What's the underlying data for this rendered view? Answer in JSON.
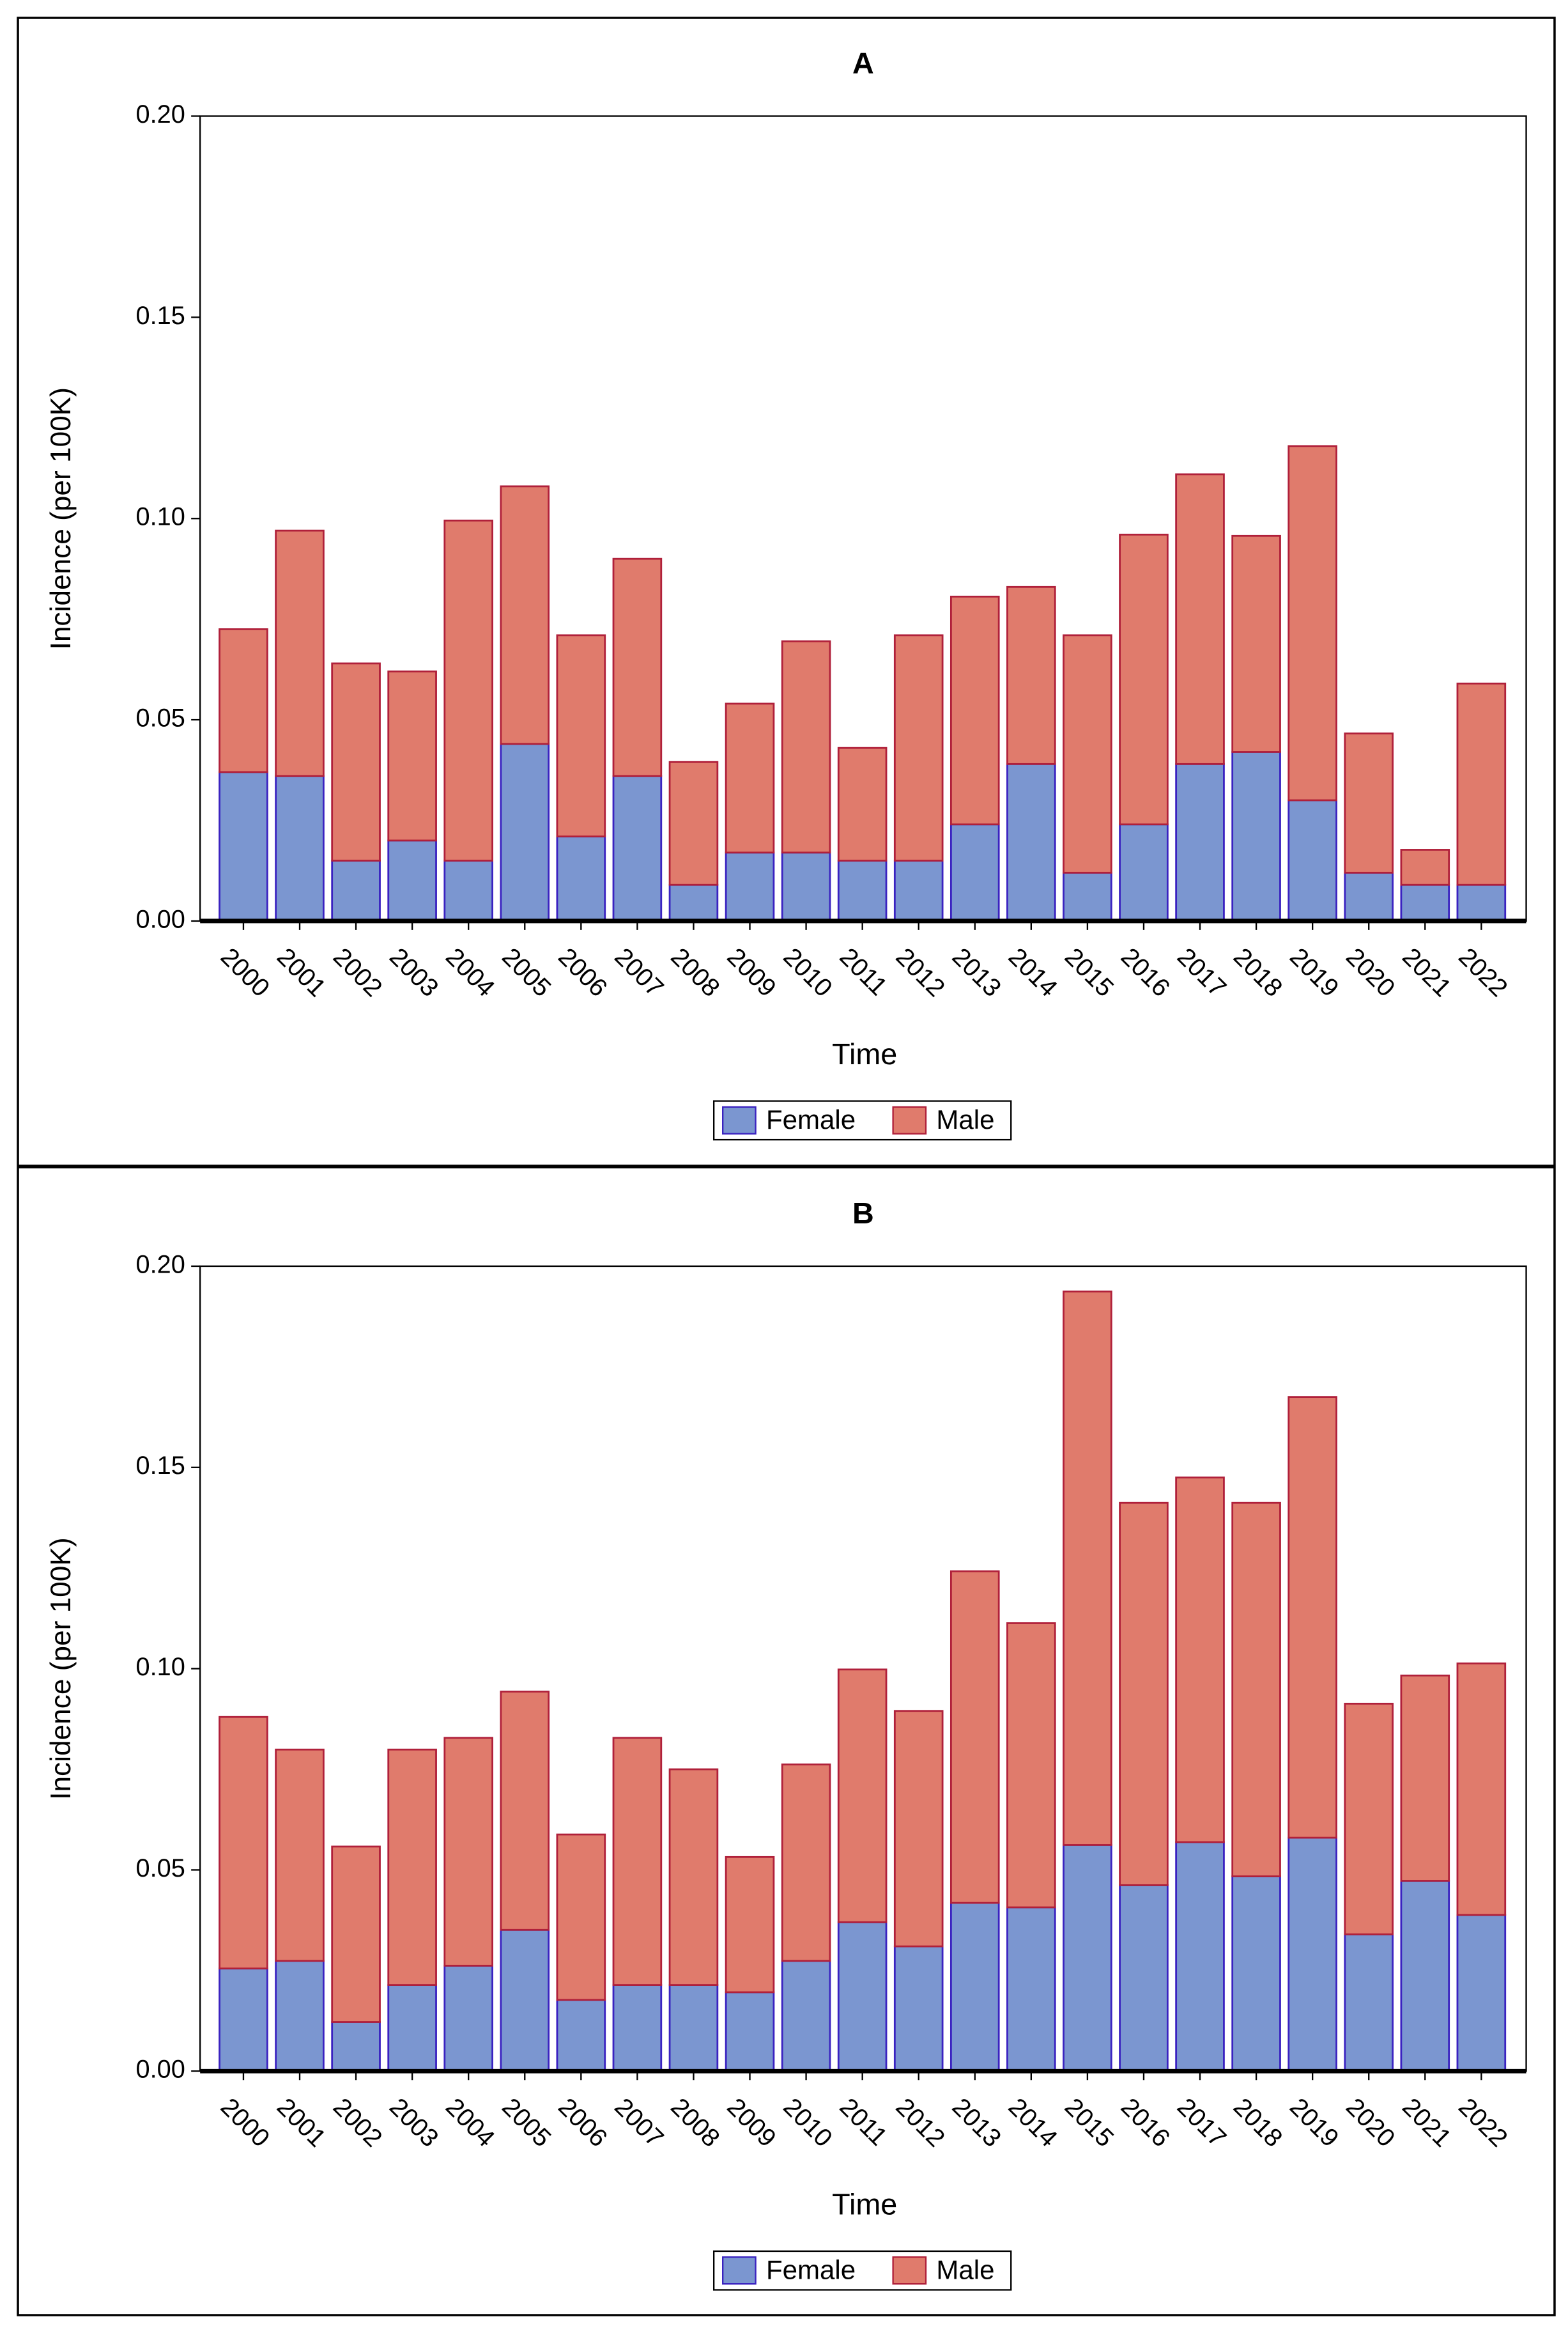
{
  "chart_data": [
    {
      "type": "stacked_bar",
      "title": "A",
      "x_label": "Time",
      "y_label": "Incidence (per 100K)",
      "categories": [
        "2000",
        "2001",
        "2002",
        "2003",
        "2004",
        "2005",
        "2006",
        "2007",
        "2008",
        "2009",
        "2010",
        "2011",
        "2012",
        "2013",
        "2014",
        "2015",
        "2016",
        "2017",
        "2018",
        "2019",
        "2020",
        "2021",
        "2022"
      ],
      "series": [
        {
          "name": "Female",
          "color": "#7b96d0",
          "edgecolor": "#3a22c0",
          "values": [
            0.037,
            0.036,
            0.015,
            0.02,
            0.015,
            0.044,
            0.021,
            0.036,
            0.009,
            0.017,
            0.017,
            0.015,
            0.015,
            0.024,
            0.039,
            0.012,
            0.024,
            0.039,
            0.042,
            0.03,
            0.012,
            0.009,
            0.009
          ]
        },
        {
          "name": "Male",
          "color": "#e07b6c",
          "edgecolor": "#b0203a",
          "values": [
            0.0355,
            0.061,
            0.049,
            0.042,
            0.0845,
            0.064,
            0.05,
            0.054,
            0.0305,
            0.037,
            0.0525,
            0.028,
            0.056,
            0.0566,
            0.044,
            0.059,
            0.072,
            0.072,
            0.0537,
            0.088,
            0.0346,
            0.0087,
            0.05
          ]
        }
      ],
      "ylim": [
        0,
        0.2
      ],
      "yticks": [
        {
          "value": 0,
          "label": "0.00"
        },
        {
          "value": 0.05,
          "label": "0.05"
        },
        {
          "value": 0.1,
          "label": "0.10"
        },
        0.15,
        {
          "value": 0.2,
          "label": "0.20"
        }
      ],
      "legend": "bottom"
    },
    {
      "type": "stacked_bar",
      "title": "B",
      "x_label": "Time",
      "y_label": "Incidence (per 100K)",
      "categories": [
        "2000",
        "2001",
        "2002",
        "2003",
        "2004",
        "2005",
        "2006",
        "2007",
        "2008",
        "2009",
        "2010",
        "2011",
        "2012",
        "2013",
        "2014",
        "2015",
        "2016",
        "2017",
        "2018",
        "2019",
        "2020",
        "2021",
        "2022"
      ],
      "series": [
        {
          "name": "Female",
          "color": "#7b96d0",
          "edgecolor": "#3a22c0",
          "values": [
            0.0255,
            0.0274,
            0.0122,
            0.0214,
            0.0262,
            0.0351,
            0.0177,
            0.0214,
            0.0214,
            0.0196,
            0.0274,
            0.037,
            0.031,
            0.0418,
            0.0407,
            0.0562,
            0.0462,
            0.0569,
            0.0484,
            0.058,
            0.034,
            0.0473,
            0.0388
          ]
        },
        {
          "name": "Male",
          "color": "#e07b6c",
          "edgecolor": "#b0203a",
          "values": [
            0.0625,
            0.0525,
            0.0436,
            0.0585,
            0.0566,
            0.0592,
            0.0411,
            0.0614,
            0.0536,
            0.0336,
            0.0488,
            0.0628,
            0.0585,
            0.0824,
            0.0706,
            0.1375,
            0.095,
            0.0906,
            0.0928,
            0.1095,
            0.0573,
            0.051,
            0.0625
          ]
        }
      ],
      "ylim": [
        0,
        0.2
      ],
      "yticks": [
        {
          "value": 0,
          "label": "0.00"
        },
        {
          "value": 0.05,
          "label": "0.05"
        },
        {
          "value": 0.1,
          "label": "0.10"
        },
        0.15,
        {
          "value": 0.2,
          "label": "0.20"
        }
      ],
      "legend": "bottom"
    }
  ]
}
